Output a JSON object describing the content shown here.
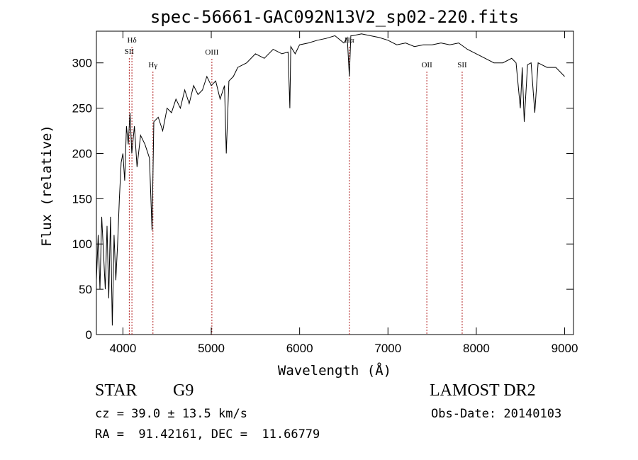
{
  "chart_data": {
    "type": "line",
    "title": "spec-56661-GAC092N13V2_sp02-220.fits",
    "xlabel": "Wavelength (Å)",
    "ylabel": "Flux (relative)",
    "xlim": [
      3700,
      9100
    ],
    "ylim": [
      0,
      335
    ],
    "x_ticks": [
      4000,
      5000,
      6000,
      7000,
      8000,
      9000
    ],
    "y_ticks": [
      0,
      50,
      100,
      150,
      200,
      250,
      300
    ],
    "grid": false,
    "line_color": "#000000",
    "marker_color": "#b22222",
    "series": [
      {
        "x": [
          3700,
          3720,
          3740,
          3760,
          3780,
          3800,
          3820,
          3840,
          3860,
          3880,
          3900,
          3920,
          3940,
          3960,
          3980,
          4000,
          4020,
          4040,
          4060,
          4080,
          4100,
          4130,
          4160,
          4200,
          4250,
          4300,
          4330,
          4350,
          4400,
          4450,
          4500,
          4550,
          4600,
          4650,
          4700,
          4750,
          4800,
          4850,
          4900,
          4950,
          5000,
          5050,
          5100,
          5150,
          5170,
          5200,
          5250,
          5300,
          5400,
          5500,
          5600,
          5700,
          5800,
          5870,
          5890,
          5900,
          5950,
          6000,
          6100,
          6200,
          6300,
          6400,
          6500,
          6540,
          6563,
          6580,
          6600,
          6700,
          6800,
          6900,
          7000,
          7100,
          7200,
          7300,
          7400,
          7500,
          7600,
          7700,
          7800,
          7900,
          8000,
          8100,
          8200,
          8300,
          8400,
          8450,
          8498,
          8520,
          8542,
          8580,
          8620,
          8662,
          8700,
          8800,
          8900,
          9000
        ],
        "y": [
          60,
          110,
          50,
          130,
          90,
          50,
          120,
          40,
          130,
          10,
          110,
          60,
          100,
          150,
          190,
          200,
          170,
          230,
          210,
          245,
          200,
          230,
          185,
          220,
          210,
          195,
          115,
          235,
          240,
          225,
          250,
          245,
          260,
          250,
          270,
          255,
          275,
          265,
          270,
          285,
          275,
          280,
          260,
          275,
          200,
          280,
          285,
          295,
          300,
          310,
          305,
          315,
          310,
          312,
          250,
          318,
          310,
          320,
          322,
          325,
          327,
          330,
          322,
          328,
          285,
          330,
          330,
          332,
          330,
          328,
          325,
          320,
          322,
          318,
          320,
          320,
          322,
          320,
          322,
          315,
          310,
          305,
          300,
          300,
          305,
          300,
          250,
          295,
          235,
          298,
          300,
          245,
          300,
          295,
          295,
          285
        ]
      }
    ],
    "line_markers": [
      {
        "label": "Hδ",
        "x": 4102
      },
      {
        "label": "SII",
        "x": 4072
      },
      {
        "label": "Hγ",
        "x": 4340
      },
      {
        "label": "OIII",
        "x": 5007
      },
      {
        "label": "Hα",
        "x": 6563
      },
      {
        "label": "OII",
        "x": 7440
      },
      {
        "label": "SII",
        "x": 7840
      }
    ]
  },
  "info": {
    "class_type": "STAR",
    "subclass": "G9",
    "survey": "LAMOST DR2",
    "cz": "cz = 39.0 ± 13.5 km/s",
    "obs_date": "Obs-Date: 20140103",
    "coords": "RA =  91.42161, DEC =  11.66779"
  }
}
